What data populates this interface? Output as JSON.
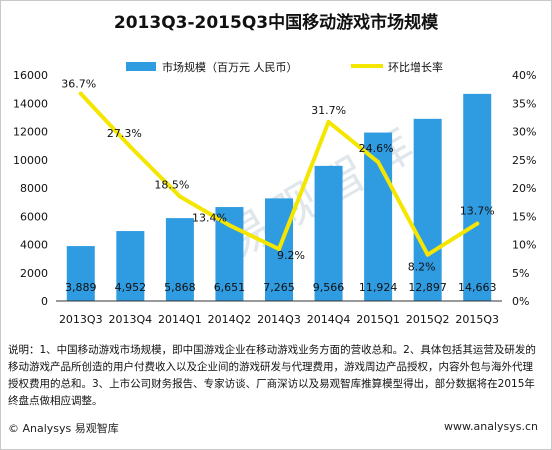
{
  "title": "2013Q3-2015Q3中国移动游戏市场规模",
  "chart_data": {
    "type": "bar",
    "categories": [
      "2013Q3",
      "2013Q4",
      "2014Q1",
      "2014Q2",
      "2014Q3",
      "2014Q4",
      "2015Q1",
      "2015Q2",
      "2015Q3"
    ],
    "series": [
      {
        "name": "市场规模（百万元 人民币）",
        "type": "bar",
        "axis": "left",
        "values": [
          3889,
          4952,
          5868,
          6651,
          7265,
          9566,
          11924,
          12897,
          14663
        ],
        "labels": [
          "3,889",
          "4,952",
          "5,868",
          "6,651",
          "7,265",
          "9,566",
          "11,924",
          "12,897",
          "14,663"
        ],
        "color": "#2f9be0"
      },
      {
        "name": "环比增长率",
        "type": "line",
        "axis": "right",
        "values": [
          36.7,
          27.3,
          18.5,
          13.4,
          9.2,
          31.7,
          24.6,
          8.2,
          13.7
        ],
        "labels": [
          "36.7%",
          "27.3%",
          "18.5%",
          "13.4%",
          "9.2%",
          "31.7%",
          "24.6%",
          "8.2%",
          "13.7%"
        ],
        "color": "#f5e600"
      }
    ],
    "y_left": {
      "min": 0,
      "max": 16000,
      "ticks": [
        "0",
        "2000",
        "4000",
        "6000",
        "8000",
        "10000",
        "12000",
        "14000",
        "16000"
      ]
    },
    "y_right": {
      "min": 0,
      "max": 40,
      "ticks": [
        "0%",
        "5%",
        "10%",
        "15%",
        "20%",
        "25%",
        "30%",
        "35%",
        "40%"
      ]
    },
    "legend_position": "top",
    "grid": false
  },
  "notes": "说明：1、中国移动游戏市场规模，即中国游戏企业在移动游戏业务方面的营收总和。2、具体包括其运营及研发的移动游戏产品所创造的用户付费收入以及企业间的游戏研发与代理费用，游戏周边产品授权，内容外包与海外代理授权费用的总和。3、上市公司财务报告、专家访谈、厂商深访以及易观智库推算模型得出，部分数据将在2015年终盘点做相应调整。",
  "footer": {
    "left": "© Analysys 易观智库",
    "right": "www.analysys.cn"
  },
  "watermark": "易观智库"
}
